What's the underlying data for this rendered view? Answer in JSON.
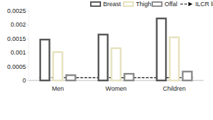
{
  "chart_data": {
    "type": "bar",
    "categories": [
      "Men",
      "Women",
      "Children"
    ],
    "series": [
      {
        "name": "Breast",
        "color": "#555555",
        "values": [
          0.0015,
          0.00168,
          0.00226
        ]
      },
      {
        "name": "Thigh",
        "color": "#e6e2bd",
        "values": [
          0.00105,
          0.00119,
          0.00158
        ]
      },
      {
        "name": "Offal",
        "color": "#8a8a8a",
        "values": [
          0.00022,
          0.00027,
          0.00035
        ]
      },
      {
        "name": "ILCR limit",
        "type": "line",
        "line_style": "dashed",
        "color": "#000000",
        "values": [
          0.0001,
          0.0001,
          0.0001
        ]
      }
    ],
    "ylim": [
      0,
      0.0025
    ],
    "yticks": [
      0,
      0.0005,
      0.001,
      0.0015,
      0.002,
      0.0025
    ],
    "grid": false,
    "legend": "top"
  }
}
